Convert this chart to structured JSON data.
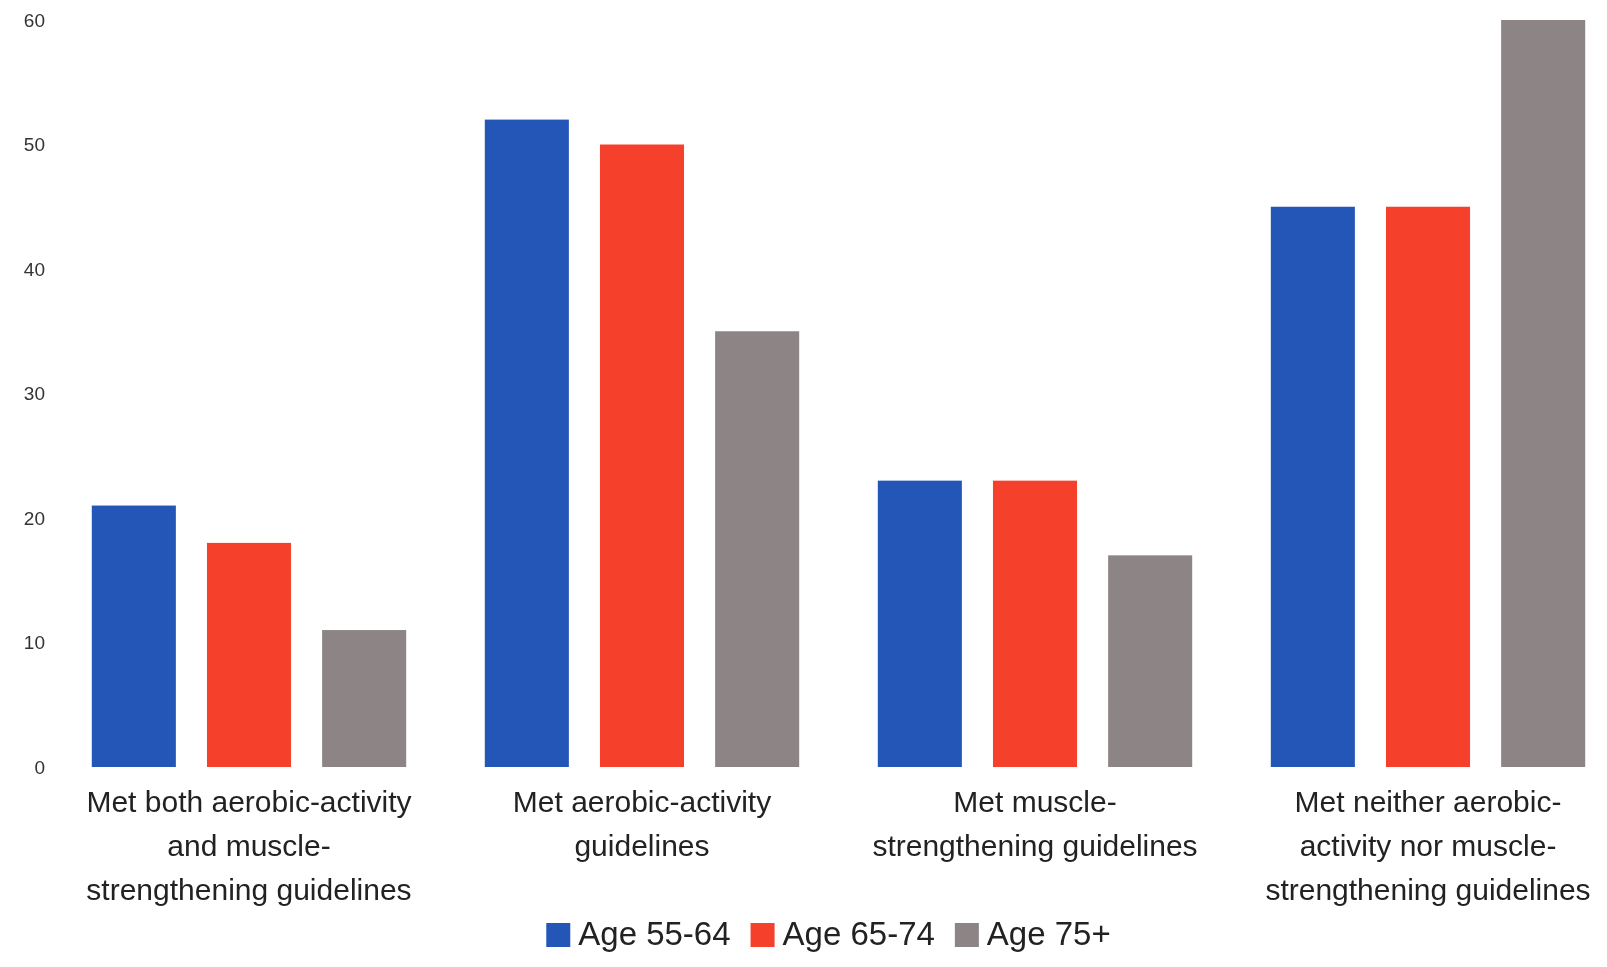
{
  "chart_data": {
    "type": "bar",
    "categories": [
      "Met both aerobic-activity and muscle-strengthening guidelines",
      "Met aerobic-activity guidelines",
      "Met muscle-strengthening guidelines",
      "Met neither aerobic-activity nor muscle-strengthening guidelines"
    ],
    "series": [
      {
        "name": "Age 55-64",
        "color": "#2456b8",
        "values": [
          21,
          52,
          23,
          45
        ]
      },
      {
        "name": "Age 65-74",
        "color": "#f5412c",
        "values": [
          18,
          50,
          23,
          45
        ]
      },
      {
        "name": "Age 75+",
        "color": "#8c8485",
        "values": [
          11,
          35,
          17,
          60
        ]
      }
    ],
    "ylim": [
      0,
      60
    ],
    "yticks": [
      0,
      10,
      20,
      30,
      40,
      50,
      60
    ],
    "grid": false,
    "legend": "bottom"
  }
}
